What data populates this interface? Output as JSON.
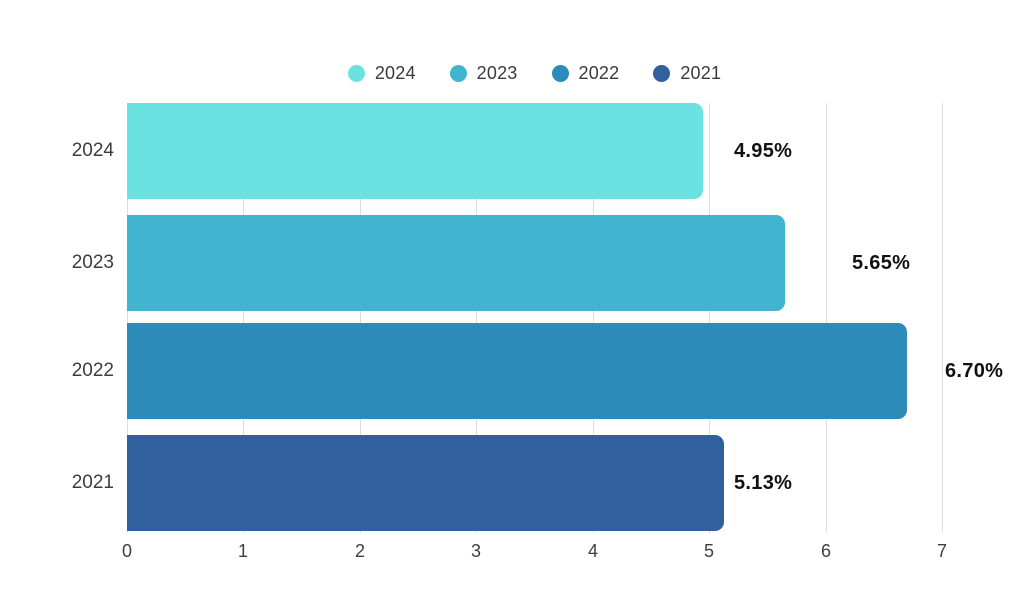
{
  "chart_data": {
    "type": "bar",
    "orientation": "horizontal",
    "title": "",
    "xlabel": "",
    "ylabel": "",
    "categories": [
      "2024",
      "2023",
      "2022",
      "2021"
    ],
    "values": [
      4.95,
      5.65,
      6.7,
      5.13
    ],
    "value_labels": [
      "4.95%",
      "5.65%",
      "6.70%",
      "5.13%"
    ],
    "bar_colors": [
      "#6ae2e2",
      "#41b4cf",
      "#2d8bba",
      "#30609e"
    ],
    "legend": [
      {
        "label": "2024",
        "color": "#6ae2e2"
      },
      {
        "label": "2023",
        "color": "#41b4cf"
      },
      {
        "label": "2022",
        "color": "#2d8bba"
      },
      {
        "label": "2021",
        "color": "#30609e"
      }
    ],
    "legend_position": "top-center",
    "x_ticks": [
      "0",
      "1",
      "2",
      "3",
      "4",
      "5",
      "6",
      "7"
    ],
    "xlim": [
      0,
      7
    ],
    "grid": true,
    "gridline_color": "#dedede",
    "background_color": "#ffffff"
  }
}
